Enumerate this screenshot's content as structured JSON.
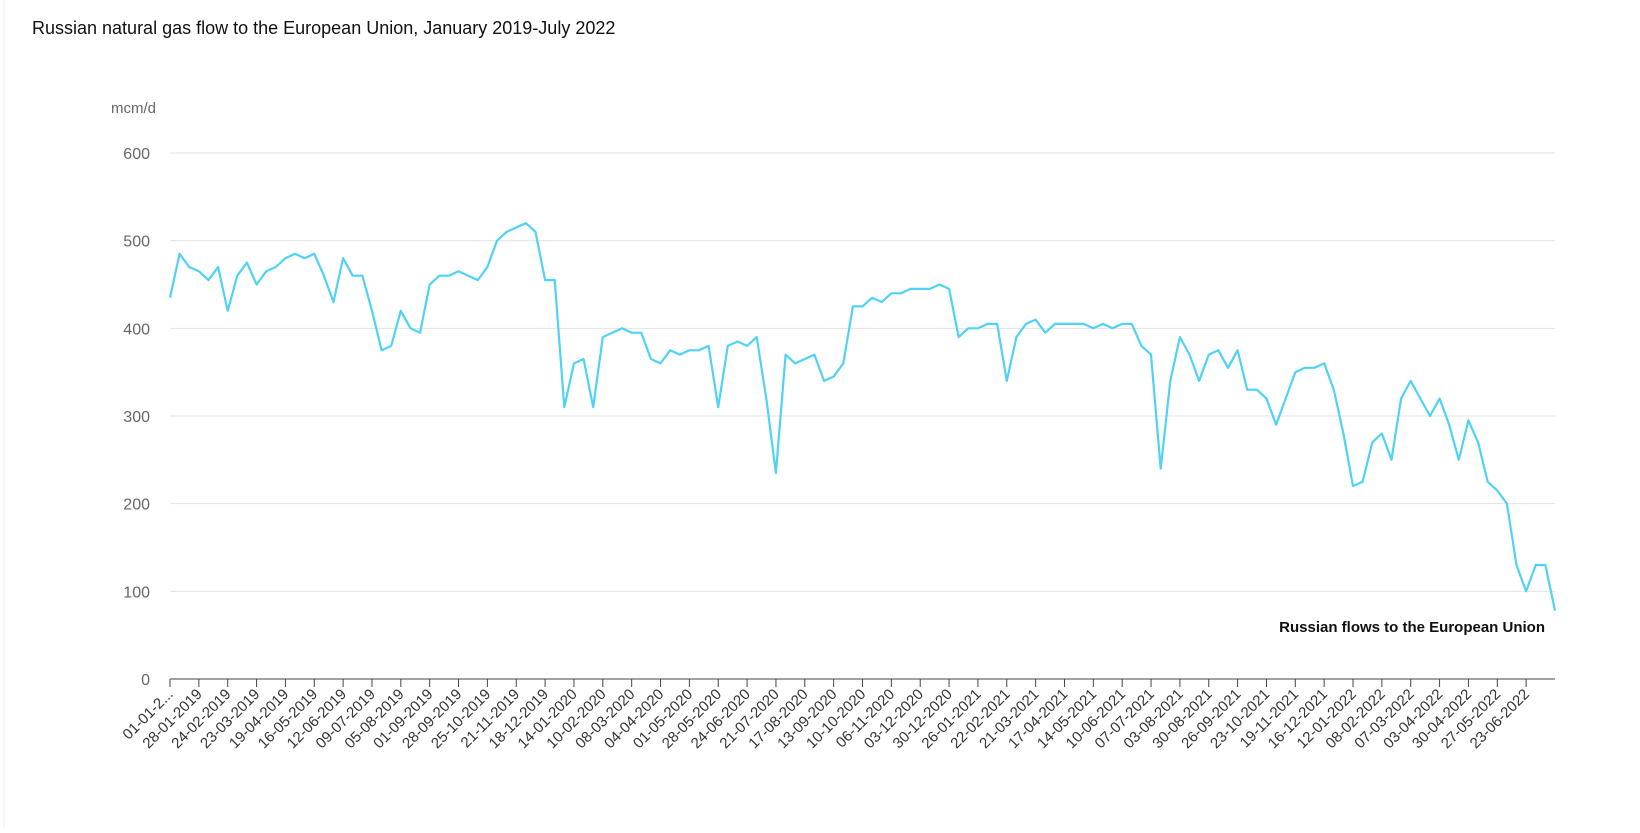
{
  "chart_data": {
    "type": "line",
    "title": "Russian natural gas flow to the European Union, January 2019-July 2022",
    "y_label": "mcm/d",
    "categories": [
      "01-01-2...",
      null,
      null,
      "28-01-2019",
      null,
      null,
      "24-02-2019",
      null,
      null,
      "23-03-2019",
      null,
      null,
      "19-04-2019",
      null,
      null,
      "16-05-2019",
      null,
      null,
      "12-06-2019",
      null,
      null,
      "09-07-2019",
      null,
      null,
      "05-08-2019",
      null,
      null,
      "01-09-2019",
      null,
      null,
      "28-09-2019",
      null,
      null,
      "25-10-2019",
      null,
      null,
      "21-11-2019",
      null,
      null,
      "18-12-2019",
      null,
      null,
      "14-01-2020",
      null,
      null,
      "10-02-2020",
      null,
      null,
      "08-03-2020",
      null,
      null,
      "04-04-2020",
      null,
      null,
      "01-05-2020",
      null,
      null,
      "28-05-2020",
      null,
      null,
      "24-06-2020",
      null,
      null,
      "21-07-2020",
      null,
      null,
      "17-08-2020",
      null,
      null,
      "13-09-2020",
      null,
      null,
      "10-10-2020",
      null,
      null,
      "06-11-2020",
      null,
      null,
      "03-12-2020",
      null,
      null,
      "30-12-2020",
      null,
      null,
      "26-01-2021",
      null,
      null,
      "22-02-2021",
      null,
      null,
      "21-03-2021",
      null,
      null,
      "17-04-2021",
      null,
      null,
      "14-05-2021",
      null,
      null,
      "10-06-2021",
      null,
      null,
      "07-07-2021",
      null,
      null,
      "03-08-2021",
      null,
      null,
      "30-08-2021",
      null,
      null,
      "26-09-2021",
      null,
      null,
      "23-10-2021",
      null,
      null,
      "19-11-2021",
      null,
      null,
      "16-12-2021",
      null,
      null,
      "12-01-2022",
      null,
      null,
      "08-02-2022",
      null,
      null,
      "07-03-2022",
      null,
      null,
      "03-04-2022",
      null,
      null,
      "30-04-2022",
      null,
      null,
      "27-05-2022",
      null,
      null,
      "23-06-2022",
      null,
      null,
      null
    ],
    "series": [
      {
        "name": "Russian flows to the European Union",
        "color": "#4fd2f5",
        "values": [
          435,
          485,
          470,
          465,
          455,
          470,
          420,
          460,
          475,
          450,
          465,
          470,
          480,
          485,
          480,
          485,
          460,
          430,
          480,
          460,
          460,
          420,
          375,
          380,
          420,
          400,
          395,
          450,
          460,
          460,
          465,
          460,
          455,
          470,
          500,
          510,
          515,
          520,
          510,
          455,
          455,
          310,
          360,
          365,
          310,
          390,
          395,
          400,
          395,
          395,
          365,
          360,
          375,
          370,
          375,
          375,
          380,
          310,
          380,
          385,
          380,
          390,
          320,
          235,
          370,
          360,
          365,
          370,
          340,
          345,
          360,
          425,
          425,
          435,
          430,
          440,
          440,
          445,
          445,
          445,
          450,
          445,
          390,
          400,
          400,
          405,
          405,
          340,
          390,
          405,
          410,
          395,
          405,
          405,
          405,
          405,
          400,
          405,
          400,
          405,
          405,
          380,
          370,
          240,
          340,
          390,
          370,
          340,
          370,
          375,
          355,
          375,
          330,
          330,
          320,
          290,
          320,
          350,
          355,
          355,
          360,
          330,
          280,
          220,
          225,
          270,
          280,
          250,
          320,
          340,
          320,
          300,
          320,
          290,
          250,
          295,
          270,
          225,
          215,
          200,
          130,
          100,
          130,
          130,
          78
        ]
      }
    ],
    "ylim": [
      0,
      600
    ],
    "yticks": [
      0,
      100,
      200,
      300,
      400,
      500,
      600
    ],
    "grid": true
  }
}
